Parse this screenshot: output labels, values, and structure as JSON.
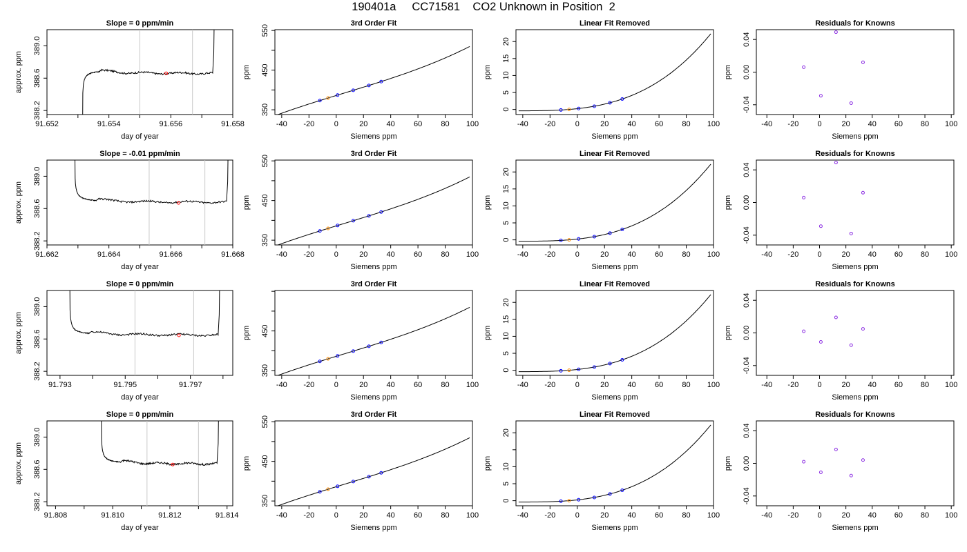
{
  "page_title": "190401a     CC71581    CO2 Unknown in Position  2",
  "colors": {
    "axis": "#000000",
    "trace": "#000000",
    "window_line": "#c8c8c8",
    "avg_point": "#ff0000",
    "known_point": "#0000ff",
    "unknown_point": "#ff8c00",
    "residual_point": "#8a2be2"
  },
  "chart_data": [
    {
      "type": "line",
      "panel": "time",
      "row": 1,
      "title": "Slope =  0  ppm/min",
      "xlabel": "day of year",
      "ylabel": "approx. ppm",
      "xlim": [
        91.652,
        91.658
      ],
      "ylim": [
        388.15,
        389.2
      ],
      "xticks": [
        91.652,
        91.653,
        91.654,
        91.655,
        91.656,
        91.657,
        91.658
      ],
      "xtick_labels": [
        "91.652",
        "",
        "91.654",
        "",
        "91.656",
        "",
        "91.658"
      ],
      "yticks": [
        388.2,
        388.6,
        389.0
      ],
      "ytick_labels": [
        "388.2",
        "388.6",
        "389.0"
      ],
      "window": [
        91.655,
        91.6567
      ],
      "plateau": 388.66,
      "avg_point": {
        "x": 91.65585,
        "y": 388.66
      },
      "start": {
        "x": 91.65315,
        "y": 388.0
      },
      "rise_end": 91.6537,
      "end_x": 91.65735
    },
    {
      "type": "scatter",
      "panel": "fit",
      "row": 1,
      "title": "3rd Order Fit",
      "xlabel": "Siemens ppm",
      "ylabel": "ppm",
      "xlim": [
        -45,
        100
      ],
      "ylim": [
        338,
        552
      ],
      "xticks": [
        -40,
        -20,
        0,
        20,
        40,
        60,
        80,
        100
      ],
      "yticks": [
        350,
        400,
        450,
        500,
        550
      ],
      "ytick_labels": [
        "350",
        "",
        "450",
        "",
        "550"
      ],
      "known_x": [
        -12,
        1,
        12.5,
        24,
        33
      ],
      "unknown_x": [
        -6
      ]
    },
    {
      "type": "scatter",
      "panel": "linres",
      "row": 1,
      "title": "Linear Fit Removed",
      "xlabel": "Siemens ppm",
      "ylabel": "ppm",
      "xlim": [
        -45,
        100
      ],
      "ylim": [
        -1.5,
        23.5
      ],
      "xticks": [
        -40,
        -20,
        0,
        20,
        40,
        60,
        80,
        100
      ],
      "yticks": [
        0,
        5,
        10,
        15,
        20
      ],
      "ytick_labels": [
        "0",
        "5",
        "10",
        "15",
        "20"
      ],
      "known_x": [
        -12,
        1,
        12.5,
        24,
        33
      ],
      "unknown_x": [
        -6
      ]
    },
    {
      "type": "scatter",
      "panel": "resid",
      "row": 1,
      "title": "Residuals for Knowns",
      "xlabel": "Siemens ppm",
      "ylabel": "ppm",
      "xlim": [
        -48,
        102
      ],
      "ylim": [
        -0.052,
        0.052
      ],
      "xticks": [
        -40,
        -20,
        0,
        20,
        40,
        60,
        80,
        100
      ],
      "yticks": [
        -0.04,
        0.0,
        0.04
      ],
      "ytick_labels": [
        "-0.04",
        "0.00",
        "0.04"
      ],
      "points": [
        {
          "x": -12,
          "y": 0.006
        },
        {
          "x": 1,
          "y": -0.029
        },
        {
          "x": 12.5,
          "y": 0.049
        },
        {
          "x": 24,
          "y": -0.038
        },
        {
          "x": 33,
          "y": 0.012
        }
      ]
    },
    {
      "type": "line",
      "panel": "time",
      "row": 2,
      "title": "Slope =  -0.01  ppm/min",
      "xlabel": "day of year",
      "ylabel": "approx. ppm",
      "xlim": [
        91.662,
        91.668
      ],
      "ylim": [
        388.15,
        389.2
      ],
      "xticks": [
        91.662,
        91.663,
        91.664,
        91.665,
        91.666,
        91.667,
        91.668
      ],
      "xtick_labels": [
        "91.662",
        "",
        "91.664",
        "",
        "91.666",
        "",
        "91.668"
      ],
      "yticks": [
        388.2,
        388.6,
        389.0
      ],
      "ytick_labels": [
        "388.2",
        "388.6",
        "389.0"
      ],
      "window": [
        91.6653,
        91.6671
      ],
      "plateau": 388.68,
      "avg_point": {
        "x": 91.66625,
        "y": 388.67
      },
      "start": {
        "x": 91.6629,
        "y": 389.4
      },
      "rise_end": 91.6636,
      "end_x": 91.6678
    },
    {
      "type": "scatter",
      "panel": "fit",
      "row": 2,
      "title": "3rd Order Fit",
      "xlabel": "Siemens ppm",
      "ylabel": "ppm",
      "xlim": [
        -45,
        100
      ],
      "ylim": [
        338,
        552
      ],
      "xticks": [
        -40,
        -20,
        0,
        20,
        40,
        60,
        80,
        100
      ],
      "yticks": [
        350,
        400,
        450,
        500,
        550
      ],
      "ytick_labels": [
        "350",
        "",
        "450",
        "",
        "550"
      ],
      "known_x": [
        -12,
        1,
        12.5,
        24,
        33
      ],
      "unknown_x": [
        -6
      ]
    },
    {
      "type": "scatter",
      "panel": "linres",
      "row": 2,
      "title": "Linear Fit Removed",
      "xlabel": "Siemens ppm",
      "ylabel": "ppm",
      "xlim": [
        -45,
        100
      ],
      "ylim": [
        -1.5,
        23.5
      ],
      "xticks": [
        -40,
        -20,
        0,
        20,
        40,
        60,
        80,
        100
      ],
      "yticks": [
        0,
        5,
        10,
        15,
        20
      ],
      "ytick_labels": [
        "0",
        "5",
        "10",
        "15",
        "20"
      ],
      "known_x": [
        -12,
        1,
        12.5,
        24,
        33
      ],
      "unknown_x": [
        -6
      ]
    },
    {
      "type": "scatter",
      "panel": "resid",
      "row": 2,
      "title": "Residuals for Knowns",
      "xlabel": "Siemens ppm",
      "ylabel": "ppm",
      "xlim": [
        -48,
        102
      ],
      "ylim": [
        -0.052,
        0.052
      ],
      "xticks": [
        -40,
        -20,
        0,
        20,
        40,
        60,
        80,
        100
      ],
      "yticks": [
        -0.04,
        0.0,
        0.04
      ],
      "ytick_labels": [
        "-0.04",
        "0.00",
        "0.04"
      ],
      "points": [
        {
          "x": -12,
          "y": 0.006
        },
        {
          "x": 1,
          "y": -0.029
        },
        {
          "x": 12.5,
          "y": 0.049
        },
        {
          "x": 24,
          "y": -0.038
        },
        {
          "x": 33,
          "y": 0.012
        }
      ]
    },
    {
      "type": "line",
      "panel": "time",
      "row": 3,
      "title": "Slope =  0  ppm/min",
      "xlabel": "day of year",
      "ylabel": "approx. ppm",
      "xlim": [
        91.7926,
        91.7983
      ],
      "ylim": [
        388.15,
        389.2
      ],
      "xticks": [
        91.793,
        91.794,
        91.795,
        91.796,
        91.797,
        91.798
      ],
      "xtick_labels": [
        "91.793",
        "",
        "91.795",
        "",
        "91.797",
        ""
      ],
      "yticks": [
        388.2,
        388.6,
        389.0
      ],
      "ytick_labels": [
        "388.2",
        "388.6",
        "389.0"
      ],
      "window": [
        91.7953,
        91.7971
      ],
      "plateau": 388.65,
      "avg_point": {
        "x": 91.79665,
        "y": 388.645
      },
      "start": {
        "x": 91.7933,
        "y": 389.4
      },
      "rise_end": 91.7939,
      "end_x": 91.79785
    },
    {
      "type": "scatter",
      "panel": "fit",
      "row": 3,
      "title": "3rd Order Fit",
      "xlabel": "Siemens ppm",
      "ylabel": "ppm",
      "xlim": [
        -45,
        100
      ],
      "ylim": [
        338,
        552
      ],
      "xticks": [
        -40,
        -20,
        0,
        20,
        40,
        60,
        80,
        100
      ],
      "yticks": [
        350,
        400,
        450,
        500,
        550
      ],
      "ytick_labels": [
        "350",
        "",
        "450",
        "",
        ""
      ],
      "known_x": [
        -12,
        1,
        12.5,
        24,
        33
      ],
      "unknown_x": [
        -6
      ]
    },
    {
      "type": "scatter",
      "panel": "linres",
      "row": 3,
      "title": "Linear Fit Removed",
      "xlabel": "Siemens ppm",
      "ylabel": "ppm",
      "xlim": [
        -45,
        100
      ],
      "ylim": [
        -1.5,
        23.5
      ],
      "xticks": [
        -40,
        -20,
        0,
        20,
        40,
        60,
        80,
        100
      ],
      "yticks": [
        0,
        5,
        10,
        15,
        20
      ],
      "ytick_labels": [
        "0",
        "5",
        "10",
        "15",
        "20"
      ],
      "known_x": [
        -12,
        1,
        12.5,
        24,
        33
      ],
      "unknown_x": [
        -6
      ]
    },
    {
      "type": "scatter",
      "panel": "resid",
      "row": 3,
      "title": "Residuals for Knowns",
      "xlabel": "Siemens ppm",
      "ylabel": "ppm",
      "xlim": [
        -48,
        102
      ],
      "ylim": [
        -0.052,
        0.052
      ],
      "xticks": [
        -40,
        -20,
        0,
        20,
        40,
        60,
        80,
        100
      ],
      "yticks": [
        -0.04,
        0.0,
        0.04
      ],
      "ytick_labels": [
        "-0.04",
        "0.00",
        "0.04"
      ],
      "points": [
        {
          "x": -12,
          "y": 0.002
        },
        {
          "x": 1,
          "y": -0.011
        },
        {
          "x": 12.5,
          "y": 0.019
        },
        {
          "x": 24,
          "y": -0.015
        },
        {
          "x": 33,
          "y": 0.005
        }
      ]
    },
    {
      "type": "line",
      "panel": "time",
      "row": 4,
      "title": "Slope =  0  ppm/min",
      "xlabel": "day of year",
      "ylabel": "approx. ppm",
      "xlim": [
        91.8077,
        91.8142
      ],
      "ylim": [
        388.15,
        389.2
      ],
      "xticks": [
        91.808,
        91.809,
        91.81,
        91.811,
        91.812,
        91.813,
        91.814
      ],
      "xtick_labels": [
        "91.808",
        "",
        "91.810",
        "",
        "91.812",
        "",
        "91.814"
      ],
      "yticks": [
        388.2,
        388.6,
        389.0
      ],
      "ytick_labels": [
        "388.2",
        "388.6",
        "389.0"
      ],
      "window": [
        91.8112,
        91.813
      ],
      "plateau": 388.67,
      "avg_point": {
        "x": 91.8121,
        "y": 388.66
      },
      "start": {
        "x": 91.8096,
        "y": 389.4
      },
      "rise_end": 91.8103,
      "end_x": 91.81365
    },
    {
      "type": "scatter",
      "panel": "fit",
      "row": 4,
      "title": "3rd Order Fit",
      "xlabel": "Siemens ppm",
      "ylabel": "ppm",
      "xlim": [
        -45,
        100
      ],
      "ylim": [
        338,
        552
      ],
      "xticks": [
        -40,
        -20,
        0,
        20,
        40,
        60,
        80,
        100
      ],
      "yticks": [
        350,
        400,
        450,
        500,
        550
      ],
      "ytick_labels": [
        "350",
        "",
        "450",
        "",
        "550"
      ],
      "known_x": [
        -12,
        1,
        12.5,
        24,
        33
      ],
      "unknown_x": [
        -6
      ]
    },
    {
      "type": "scatter",
      "panel": "linres",
      "row": 4,
      "title": "Linear Fit Removed",
      "xlabel": "Siemens ppm",
      "ylabel": "ppm",
      "xlim": [
        -45,
        100
      ],
      "ylim": [
        -1.5,
        23.5
      ],
      "xticks": [
        -40,
        -20,
        0,
        20,
        40,
        60,
        80,
        100
      ],
      "yticks": [
        0,
        5,
        10,
        15,
        20
      ],
      "ytick_labels": [
        "0",
        "5",
        "10",
        "",
        "20"
      ],
      "known_x": [
        -12,
        1,
        12.5,
        24,
        33
      ],
      "unknown_x": [
        -6
      ]
    },
    {
      "type": "scatter",
      "panel": "resid",
      "row": 4,
      "title": "Residuals for Knowns",
      "xlabel": "Siemens ppm",
      "ylabel": "ppm",
      "xlim": [
        -48,
        102
      ],
      "ylim": [
        -0.052,
        0.052
      ],
      "xticks": [
        -40,
        -20,
        0,
        20,
        40,
        60,
        80,
        100
      ],
      "yticks": [
        -0.04,
        0.0,
        0.04
      ],
      "ytick_labels": [
        "-0.04",
        "0.00",
        "0.04"
      ],
      "points": [
        {
          "x": -12,
          "y": 0.002
        },
        {
          "x": 1,
          "y": -0.011
        },
        {
          "x": 12.5,
          "y": 0.017
        },
        {
          "x": 24,
          "y": -0.015
        },
        {
          "x": 33,
          "y": 0.004
        }
      ]
    }
  ]
}
